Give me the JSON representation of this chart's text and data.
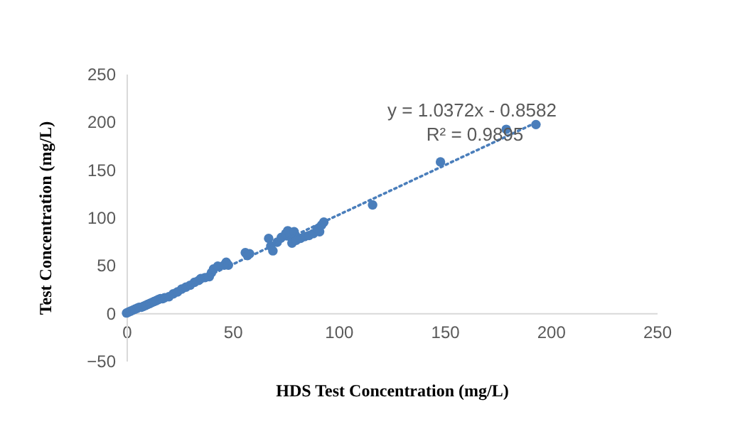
{
  "chart_data": {
    "type": "scatter",
    "xlabel": "HDS Test Concentration (mg/L)",
    "ylabel": "Test Concentration (mg/L)",
    "xlim": [
      0,
      250
    ],
    "ylim": [
      -50,
      250
    ],
    "xticks": [
      0,
      50,
      100,
      150,
      200,
      250
    ],
    "yticks": [
      -50,
      0,
      50,
      100,
      150,
      200,
      250
    ],
    "grid": false,
    "marker": "circle",
    "series": [
      {
        "color": "#4a7ebb",
        "x": [
          0,
          1,
          2,
          3,
          4,
          5,
          6,
          7,
          8,
          9,
          10,
          11,
          12,
          13,
          14,
          15,
          16,
          17,
          18,
          20,
          22,
          24,
          26,
          28,
          30,
          32,
          34,
          35,
          37,
          39,
          40,
          41,
          43,
          46,
          47,
          48,
          56,
          57,
          58,
          67,
          68,
          69,
          71,
          73,
          75,
          76,
          77,
          78,
          79,
          80,
          82,
          84,
          86,
          88,
          90,
          91,
          92,
          93,
          116,
          148,
          179,
          193
        ],
        "values": [
          0,
          1,
          2,
          3,
          4,
          5,
          6,
          6,
          7,
          8,
          9,
          10,
          11,
          12,
          13,
          14,
          15,
          15,
          16,
          17,
          20,
          22,
          25,
          27,
          29,
          32,
          34,
          36,
          37,
          38,
          42,
          46,
          49,
          50,
          53,
          50,
          63,
          60,
          62,
          78,
          70,
          65,
          74,
          79,
          83,
          86,
          80,
          73,
          85,
          76,
          78,
          80,
          81,
          83,
          88,
          85,
          92,
          95,
          113,
          158,
          192,
          197
        ]
      },
      {
        "type": "line",
        "line_style": "dotted",
        "marker": "none",
        "color": "#4a7ebb",
        "x": [
          0,
          193
        ],
        "values": [
          -1,
          199
        ]
      }
    ],
    "annotations": [
      "y = 1.0372x - 0.8582",
      "R² = 0.9895"
    ]
  }
}
